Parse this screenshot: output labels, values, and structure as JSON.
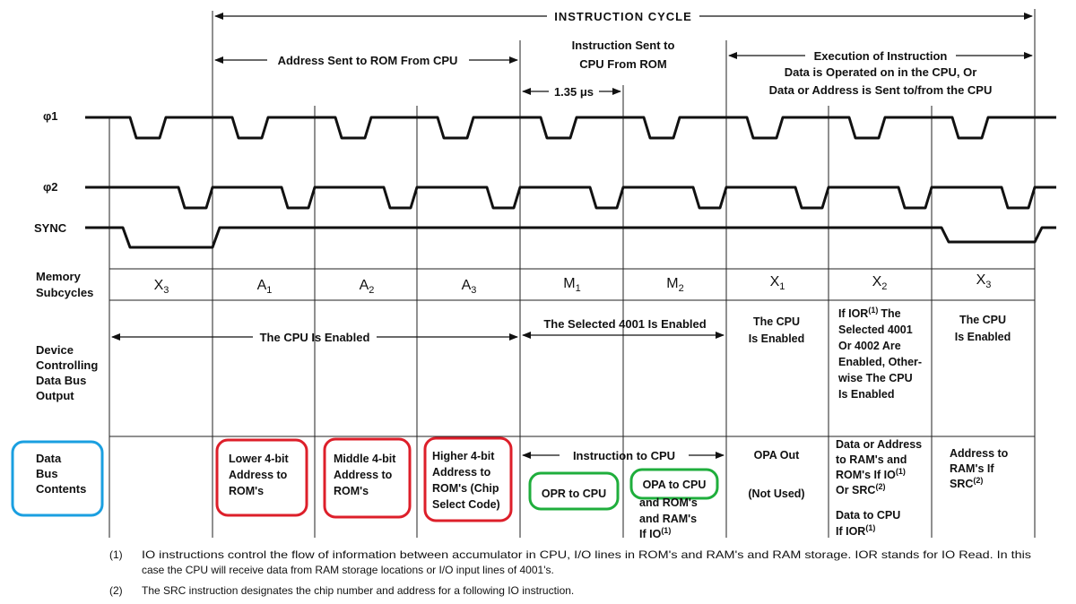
{
  "header": {
    "instruction_cycle": "INSTRUCTION CYCLE",
    "address_sent": "Address Sent to ROM From CPU",
    "instruction_sent_1": "Instruction Sent to",
    "instruction_sent_2": "CPU From ROM",
    "period": "1.35 μs",
    "execution_1": "Execution of Instruction",
    "execution_2": "Data is Operated on in the CPU, Or",
    "execution_3": "Data or Address is Sent to/from the CPU"
  },
  "signals": {
    "phi1": "φ1",
    "phi2": "φ2",
    "sync": "SYNC"
  },
  "memory": {
    "label_1": "Memory",
    "label_2": "Subcycles",
    "subcycles": [
      {
        "base": "X",
        "sub": "3"
      },
      {
        "base": "A",
        "sub": "1"
      },
      {
        "base": "A",
        "sub": "2"
      },
      {
        "base": "A",
        "sub": "3"
      },
      {
        "base": "M",
        "sub": "1"
      },
      {
        "base": "M",
        "sub": "2"
      },
      {
        "base": "X",
        "sub": "1"
      },
      {
        "base": "X",
        "sub": "2"
      },
      {
        "base": "X",
        "sub": "3"
      }
    ]
  },
  "device": {
    "label": [
      "Device",
      "Controlling",
      "Data Bus",
      "Output"
    ],
    "cpu_enabled_span": "The CPU Is Enabled",
    "selected_4001": "The Selected 4001 Is Enabled",
    "x1": [
      "The CPU",
      "Is Enabled"
    ],
    "x2": [
      "If IOR",
      "The",
      "Selected 4001",
      "Or 4002 Are",
      "Enabled, Other-",
      "wise The CPU",
      "Is Enabled"
    ],
    "x2_sup": "(1)",
    "x3": [
      "The CPU",
      "Is Enabled"
    ]
  },
  "bus": {
    "label": [
      "Data",
      "Bus",
      "Contents"
    ],
    "a1": [
      "Lower 4-bit",
      "Address to",
      "ROM's"
    ],
    "a2": [
      "Middle 4-bit",
      "Address to",
      "ROM's"
    ],
    "a3": [
      "Higher 4-bit",
      "Address to",
      "ROM's (Chip",
      "Select Code)"
    ],
    "instruction_to_cpu": "Instruction to CPU",
    "m1": "OPR to CPU",
    "m2_box": "OPA to CPU",
    "m2_rest": [
      "and ROM's",
      "and RAM's",
      "If IO"
    ],
    "m2_sup": "(1)",
    "x1": [
      "OPA Out",
      "(Not Used)"
    ],
    "x2": [
      "Data or Address",
      "to RAM's and",
      "ROM's If IO",
      "Or SRC",
      "Data to CPU",
      "If IOR"
    ],
    "x2_sup_1": "(1)",
    "x2_sup_2": "(2)",
    "x2_sup_3": "(1)",
    "x3": [
      "Address to",
      "RAM's If",
      "SRC"
    ],
    "x3_sup": "(2)"
  },
  "footnotes": {
    "n1_num": "(1)",
    "n1_line1": "IO instructions control the flow of information between accumulator in CPU, I/O lines in ROM's and RAM's and RAM storage. IOR stands for IO Read.  In this",
    "n1_line2": "case the CPU will receive data from RAM storage locations or I/O input lines of 4001's.",
    "n2_num": "(2)",
    "n2_line": "The SRC instruction designates the chip number and address for a following IO instruction."
  },
  "colors": {
    "ink": "#111111",
    "highlight_blue": "#1a9fe0",
    "highlight_red": "#dd1f2a",
    "highlight_green": "#1fae3c"
  }
}
